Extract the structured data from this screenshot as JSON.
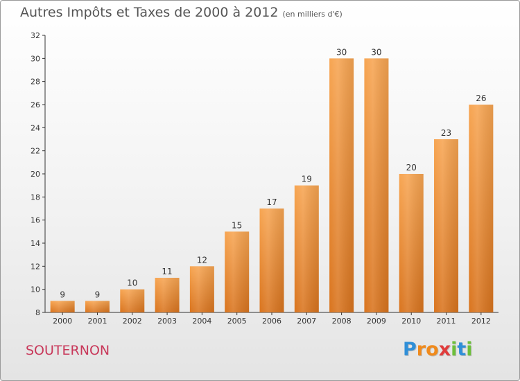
{
  "chart_data": {
    "type": "bar",
    "title": "Autres Impôts et Taxes de 2000 à 2012",
    "subtitle": "(en milliers d'€)",
    "categories": [
      "2000",
      "2001",
      "2002",
      "2003",
      "2004",
      "2005",
      "2006",
      "2007",
      "2008",
      "2009",
      "2010",
      "2011",
      "2012"
    ],
    "values": [
      9,
      9,
      10,
      11,
      12,
      15,
      17,
      19,
      30,
      30,
      20,
      23,
      26
    ],
    "ylim": [
      8,
      32
    ],
    "yticks": [
      8,
      10,
      12,
      14,
      16,
      18,
      20,
      22,
      24,
      26,
      28,
      30,
      32
    ],
    "grid": false,
    "bar_color": "#f0923a"
  },
  "commune": "SOUTERNON",
  "logo": {
    "letters": [
      "P",
      "r",
      "o",
      "x",
      "i",
      "t",
      "i"
    ],
    "colors": [
      "#2f8fd8",
      "#f08a1c",
      "#f08a1c",
      "#e03c3c",
      "#6cbf3a",
      "#2f8fd8",
      "#6cbf3a"
    ]
  }
}
